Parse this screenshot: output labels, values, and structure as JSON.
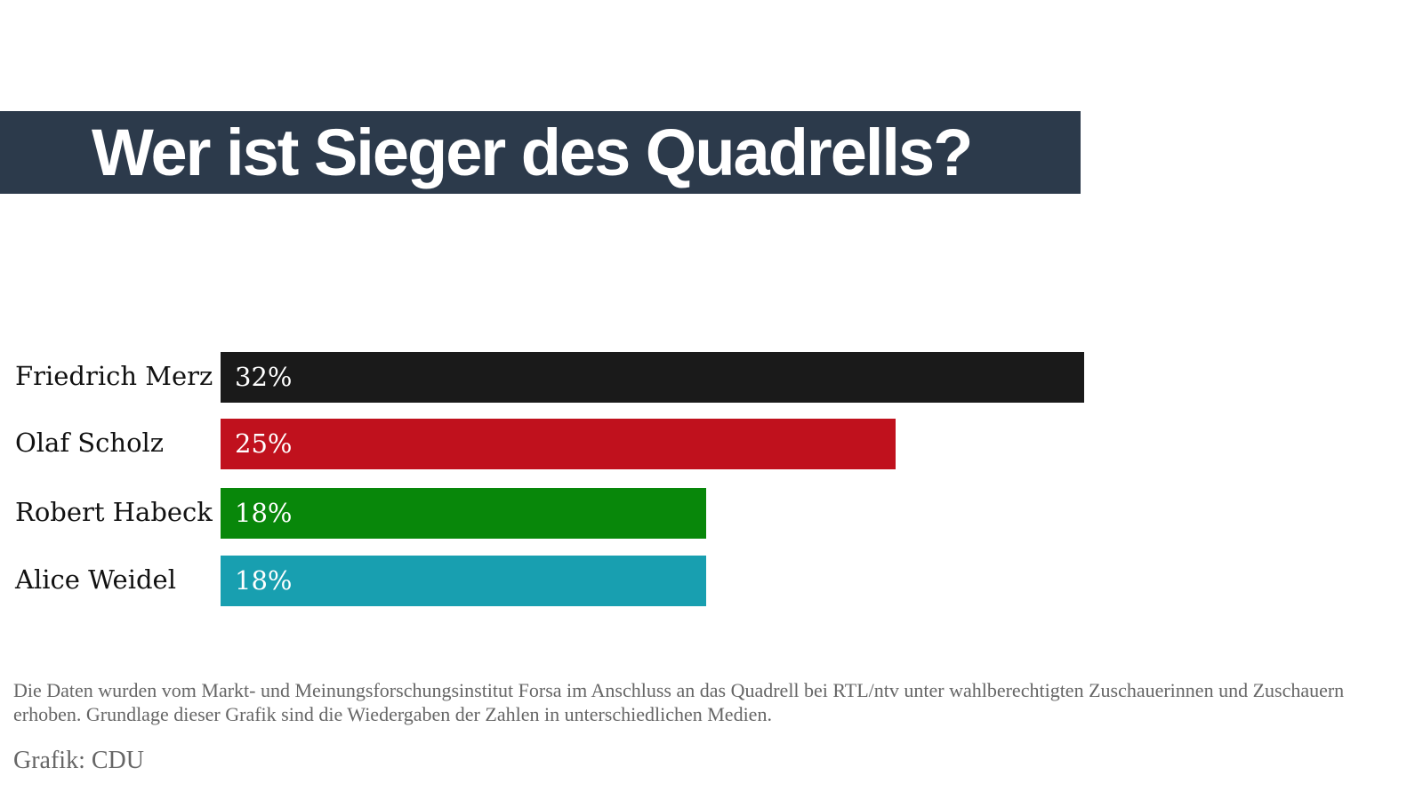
{
  "chart_data": {
    "type": "bar",
    "orientation": "horizontal",
    "title": "Wer ist Sieger des Quadrells?",
    "categories": [
      "Friedrich Merz",
      "Olaf Scholz",
      "Robert Habeck",
      "Alice Weidel"
    ],
    "values": [
      32,
      25,
      18,
      18
    ],
    "value_labels": [
      "32%",
      "25%",
      "18%",
      "18%"
    ],
    "colors": [
      "#1a1a1a",
      "#c0111d",
      "#08870a",
      "#189fb0"
    ],
    "unit": "%",
    "grid": false,
    "note": "Die Daten wurden vom Markt- und Meinungsforschungsinstitut Forsa im Anschluss an das Quadrell bei RTL/ntv unter wahlberechtigten Zuschauerinnen und Zuschauern erhoben. Grundlage dieser Grafik sind die Wiedergaben der Zahlen in unterschiedlichen Medien.",
    "source": "Grafik: CDU",
    "title_bar_color": "#2c3a4b"
  }
}
